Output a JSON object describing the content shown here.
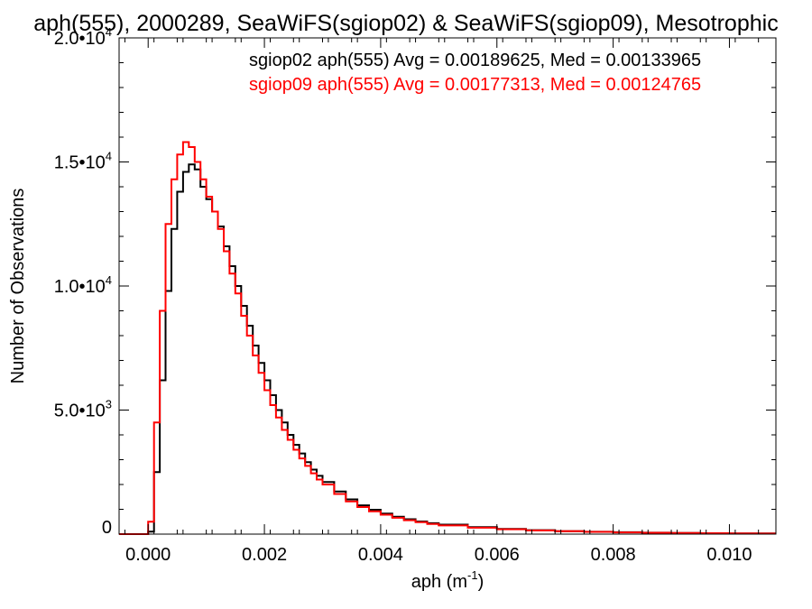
{
  "chart_data": {
    "type": "line",
    "title": "aph(555), 2000289, SeaWiFS(sgiop02) & SeaWiFS(sgiop09), Mesotrophic",
    "xlabel": "aph (m",
    "xlabel_sup": "-1",
    "xlabel_end": ")",
    "ylabel": "Number of Observations",
    "xlim": [
      -0.0005,
      0.0108
    ],
    "ylim": [
      0,
      20000
    ],
    "x_ticks": [
      {
        "value": 0.0,
        "label": "0.000"
      },
      {
        "value": 0.002,
        "label": "0.002"
      },
      {
        "value": 0.004,
        "label": "0.004"
      },
      {
        "value": 0.006,
        "label": "0.006"
      },
      {
        "value": 0.008,
        "label": "0.008"
      },
      {
        "value": 0.01,
        "label": "0.010"
      }
    ],
    "y_ticks": [
      {
        "value": 0,
        "label": "0",
        "sup": ""
      },
      {
        "value": 5000,
        "label": "5.0•10",
        "sup": "3"
      },
      {
        "value": 10000,
        "label": "1.0•10",
        "sup": "4"
      },
      {
        "value": 15000,
        "label": "1.5•10",
        "sup": "4"
      },
      {
        "value": 20000,
        "label": "2.0•10",
        "sup": "4"
      }
    ],
    "annotations": [
      {
        "text": "sgiop02 aph(555) Avg = 0.00189625, Med = 0.00133965",
        "color": "#000000"
      },
      {
        "text": "sgiop09 aph(555) Avg = 0.00177313, Med = 0.00124765",
        "color": "#ff0000"
      }
    ],
    "grid": false,
    "style": "step",
    "series": [
      {
        "name": "sgiop02 aph(555)",
        "color": "#000000",
        "x": [
          -0.0005,
          0.0,
          0.0001,
          0.0002,
          0.0003,
          0.0004,
          0.0005,
          0.0006,
          0.0007,
          0.0008,
          0.0009,
          0.001,
          0.0011,
          0.0012,
          0.0013,
          0.0014,
          0.0015,
          0.0016,
          0.0017,
          0.0018,
          0.0019,
          0.002,
          0.0021,
          0.0022,
          0.0023,
          0.0024,
          0.0025,
          0.0026,
          0.0027,
          0.0028,
          0.0029,
          0.003,
          0.0032,
          0.0034,
          0.0036,
          0.0038,
          0.004,
          0.0042,
          0.0044,
          0.0046,
          0.0048,
          0.005,
          0.0055,
          0.006,
          0.0065,
          0.007,
          0.0075,
          0.008,
          0.0085,
          0.009,
          0.0095,
          0.01,
          0.0105,
          0.0108
        ],
        "y": [
          0,
          100,
          2500,
          6200,
          9800,
          12300,
          13800,
          14600,
          14900,
          14700,
          14000,
          13500,
          13000,
          12400,
          11600,
          10800,
          10000,
          9200,
          8400,
          7600,
          6900,
          6200,
          5600,
          5000,
          4500,
          4000,
          3600,
          3250,
          2900,
          2600,
          2350,
          2100,
          1720,
          1400,
          1160,
          980,
          830,
          700,
          600,
          510,
          440,
          380,
          280,
          210,
          160,
          120,
          95,
          75,
          60,
          48,
          38,
          30,
          24,
          20
        ]
      },
      {
        "name": "sgiop09 aph(555)",
        "color": "#ff0000",
        "x": [
          -0.0005,
          0.0,
          0.0001,
          0.0002,
          0.0003,
          0.0004,
          0.0005,
          0.0006,
          0.0007,
          0.0008,
          0.0009,
          0.001,
          0.0011,
          0.0012,
          0.0013,
          0.0014,
          0.0015,
          0.0016,
          0.0017,
          0.0018,
          0.0019,
          0.002,
          0.0021,
          0.0022,
          0.0023,
          0.0024,
          0.0025,
          0.0026,
          0.0027,
          0.0028,
          0.0029,
          0.003,
          0.0032,
          0.0034,
          0.0036,
          0.0038,
          0.004,
          0.0042,
          0.0044,
          0.0046,
          0.0048,
          0.005,
          0.0055,
          0.006,
          0.0065,
          0.007,
          0.0075,
          0.008,
          0.0085,
          0.009,
          0.0095,
          0.01,
          0.0105,
          0.0108
        ],
        "y": [
          0,
          500,
          4500,
          9000,
          12500,
          14300,
          15300,
          15800,
          15600,
          15000,
          14300,
          13600,
          13000,
          12300,
          11400,
          10500,
          9700,
          8800,
          8000,
          7200,
          6500,
          5800,
          5200,
          4700,
          4200,
          3800,
          3400,
          3050,
          2750,
          2450,
          2200,
          2000,
          1620,
          1320,
          1090,
          920,
          780,
          660,
          560,
          480,
          410,
          350,
          260,
          195,
          150,
          115,
          90,
          70,
          55,
          44,
          35,
          28,
          22,
          18
        ]
      }
    ]
  }
}
